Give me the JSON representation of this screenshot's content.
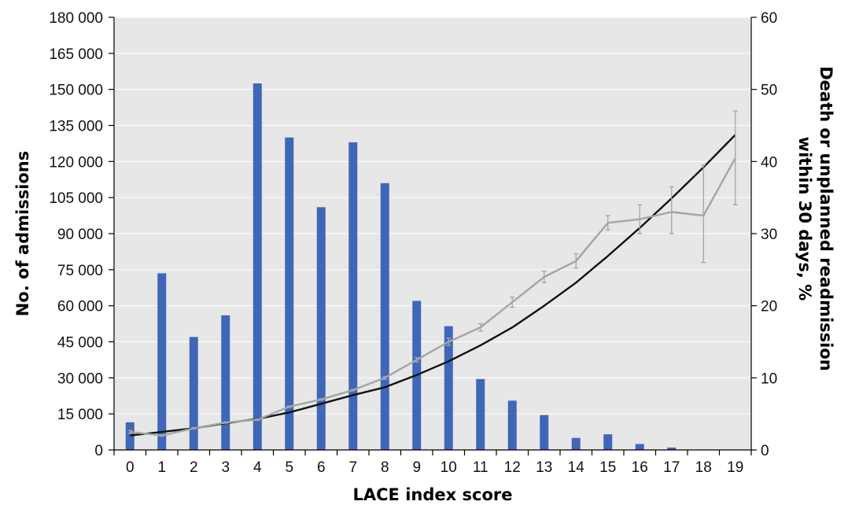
{
  "chart_data": {
    "type": "bar",
    "title": "",
    "xlabel": "LACE index score",
    "ylabel": "No. of admissions",
    "y2label_lines": [
      "Death or unplanned readmission",
      "within 30 days, %"
    ],
    "categories": [
      "0",
      "1",
      "2",
      "3",
      "4",
      "5",
      "6",
      "7",
      "8",
      "9",
      "10",
      "11",
      "12",
      "13",
      "14",
      "15",
      "16",
      "17",
      "18",
      "19"
    ],
    "ylim": [
      0,
      180000
    ],
    "y_ticks": [
      0,
      15000,
      30000,
      45000,
      60000,
      75000,
      90000,
      105000,
      120000,
      135000,
      150000,
      165000,
      180000
    ],
    "y_tick_labels": [
      "0",
      "15 000",
      "30 000",
      "45 000",
      "60 000",
      "75 000",
      "90 000",
      "105 000",
      "120 000",
      "135 000",
      "150 000",
      "165 000",
      "180 000"
    ],
    "y2lim": [
      0,
      60
    ],
    "y2_ticks": [
      0,
      10,
      20,
      30,
      40,
      50,
      60
    ],
    "y2_tick_labels": [
      "0",
      "10",
      "20",
      "30",
      "40",
      "50",
      "60"
    ],
    "grid": true,
    "series": [
      {
        "type": "bar",
        "axis": "left",
        "color": "#3f67b8",
        "values": [
          11500,
          73500,
          47000,
          56000,
          152500,
          130000,
          101000,
          128000,
          111000,
          62000,
          51500,
          29500,
          20500,
          14500,
          5000,
          6500,
          2500,
          1000,
          0,
          0
        ]
      },
      {
        "type": "line",
        "axis": "right",
        "color": "#111111",
        "values": [
          2.0,
          2.5,
          3.0,
          3.7,
          4.3,
          5.2,
          6.4,
          7.6,
          8.7,
          10.4,
          12.3,
          14.5,
          17.0,
          20.0,
          23.2,
          26.9,
          30.8,
          34.9,
          39.2,
          43.7
        ]
      },
      {
        "type": "line",
        "axis": "right",
        "color": "#a5a5a5",
        "values": [
          2.5,
          2.0,
          3.0,
          3.8,
          4.2,
          6.0,
          7.0,
          8.3,
          10.0,
          12.5,
          15.0,
          17.0,
          20.5,
          24.0,
          26.2,
          31.5,
          32.0,
          33.0,
          32.5,
          40.5
        ],
        "error_low": [
          2.3,
          1.9,
          2.9,
          3.7,
          4.1,
          5.9,
          6.9,
          8.2,
          9.8,
          12.2,
          14.5,
          16.5,
          19.8,
          23.2,
          25.2,
          30.5,
          30.0,
          30.0,
          26.0,
          34.0
        ],
        "error_high": [
          2.7,
          2.1,
          3.1,
          3.9,
          4.3,
          6.1,
          7.1,
          8.4,
          10.2,
          12.8,
          15.5,
          17.5,
          21.2,
          24.8,
          27.2,
          32.5,
          34.0,
          36.5,
          39.5,
          47.0
        ]
      }
    ],
    "colors": {
      "plot_background": "#e7e7e8",
      "gridline": "#ffffff"
    }
  }
}
